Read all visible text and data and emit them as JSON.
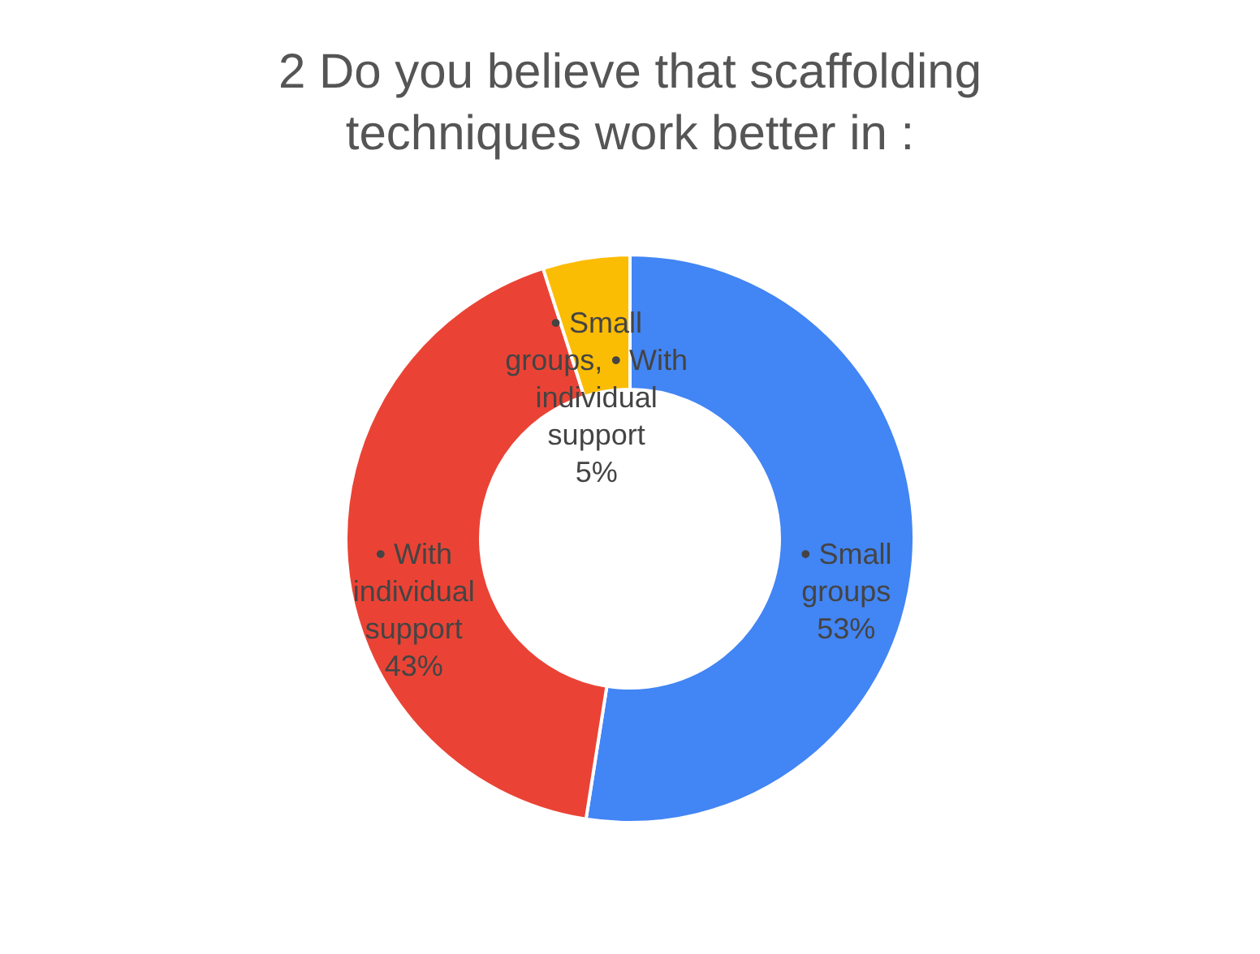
{
  "chart_data": {
    "type": "donut",
    "title": "2 Do you believe that scaffolding techniques work better in :",
    "categories": [
      "• Small groups",
      "• With individual support",
      "• Small groups, • With individual support"
    ],
    "values": [
      53,
      43,
      5
    ],
    "colors": [
      "#4285f4",
      "#ea4335",
      "#fbbc04"
    ],
    "value_labels": [
      "53%",
      "43%",
      "5%"
    ],
    "legend": false
  }
}
